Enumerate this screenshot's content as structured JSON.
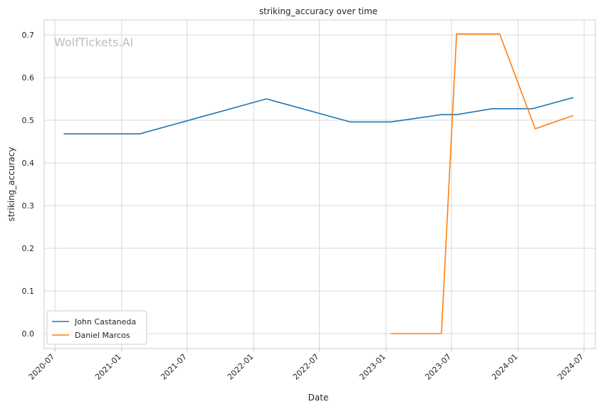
{
  "chart_data": {
    "type": "line",
    "title": "striking_accuracy over time",
    "xlabel": "Date",
    "ylabel": "striking_accuracy",
    "watermark": "WolfTickets.AI",
    "x_ticks": [
      "2020-07",
      "2021-01",
      "2021-07",
      "2022-01",
      "2022-07",
      "2023-01",
      "2023-07",
      "2024-01",
      "2024-07"
    ],
    "y_ticks": [
      "0.0",
      "0.1",
      "0.2",
      "0.3",
      "0.4",
      "0.5",
      "0.6",
      "0.7"
    ],
    "xlim": [
      "2020-06-01",
      "2024-08-01"
    ],
    "ylim": [
      -0.035,
      0.735
    ],
    "grid": true,
    "legend_position": "lower-left",
    "series": [
      {
        "name": "John Castaneda",
        "color": "#1f77b4",
        "points": [
          {
            "x": "2020-07-25",
            "y": 0.468
          },
          {
            "x": "2021-02-20",
            "y": 0.468
          },
          {
            "x": "2022-02-05",
            "y": 0.55
          },
          {
            "x": "2022-09-24",
            "y": 0.496
          },
          {
            "x": "2023-01-14",
            "y": 0.496
          },
          {
            "x": "2023-06-03",
            "y": 0.513
          },
          {
            "x": "2023-07-15",
            "y": 0.513
          },
          {
            "x": "2023-10-21",
            "y": 0.527
          },
          {
            "x": "2024-02-10",
            "y": 0.527
          },
          {
            "x": "2024-06-01",
            "y": 0.553
          }
        ]
      },
      {
        "name": "Daniel Marcos",
        "color": "#ff7f0e",
        "points": [
          {
            "x": "2023-01-14",
            "y": 0.0
          },
          {
            "x": "2023-06-03",
            "y": 0.0
          },
          {
            "x": "2023-07-15",
            "y": 0.702
          },
          {
            "x": "2023-11-11",
            "y": 0.702
          },
          {
            "x": "2024-02-17",
            "y": 0.48
          },
          {
            "x": "2024-06-01",
            "y": 0.511
          }
        ]
      }
    ]
  }
}
